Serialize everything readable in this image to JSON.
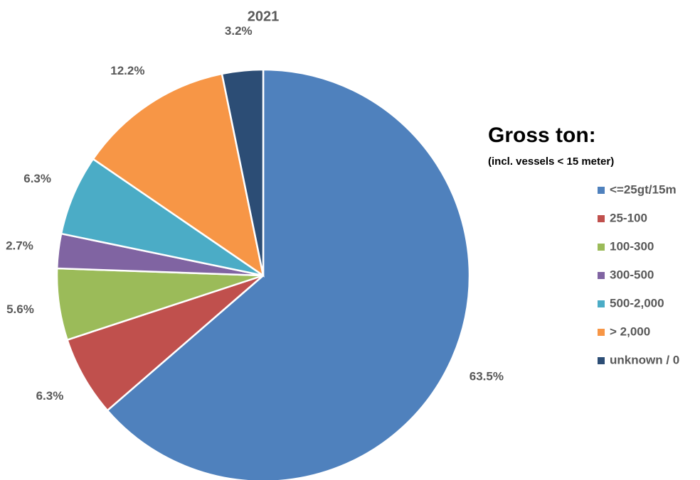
{
  "chart_data": {
    "type": "pie",
    "title": "2021",
    "legend_title": "Gross ton:",
    "legend_subtitle": "(incl. vessels < 15 meter)",
    "categories": [
      "<=25gt/15m",
      "25-100",
      "100-300",
      "300-500",
      "500-2,000",
      "> 2,000",
      "unknown / 0"
    ],
    "values": [
      63.5,
      6.3,
      5.6,
      2.7,
      6.3,
      12.2,
      3.2
    ],
    "value_labels": [
      "63.5%",
      "6.3%",
      "5.6%",
      "2.7%",
      "6.3%",
      "12.2%",
      "3.2%"
    ],
    "colors": [
      "#4f81bd",
      "#c0504d",
      "#9bbb59",
      "#8064a2",
      "#4bacc6",
      "#f79646",
      "#2c4d75"
    ],
    "legend": "right"
  }
}
